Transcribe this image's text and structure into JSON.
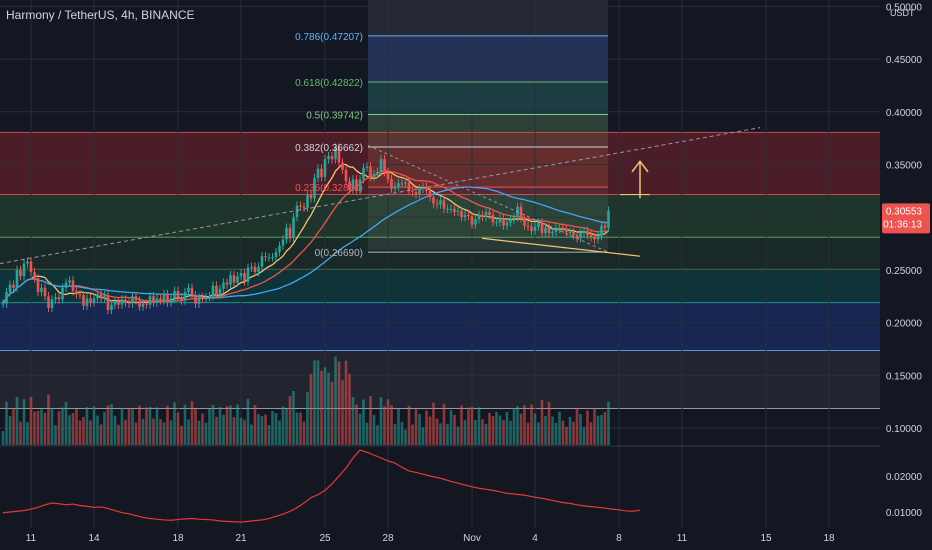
{
  "header": {
    "title": "Harmony / TetherUS, 4h, BINANCE",
    "currency": "USDT"
  },
  "colors": {
    "bg": "#131722",
    "up": "#26a69a",
    "down": "#ef5350",
    "grid": "#2a2e39",
    "text": "#d1d4dc"
  },
  "price_axis": {
    "ticks": [
      "0.50000",
      "0.45000",
      "0.40000",
      "0.35000",
      "0.30000",
      "0.25000",
      "0.20000",
      "0.15000",
      "0.10000"
    ],
    "tick_values": [
      0.5,
      0.45,
      0.4,
      0.35,
      0.3,
      0.25,
      0.2,
      0.15,
      0.1
    ],
    "current_price": "0.30553",
    "countdown": "01:36:13"
  },
  "indicator_axis": {
    "ticks": [
      "0.02000",
      "0.01000"
    ],
    "tick_values": [
      0.02,
      0.01
    ]
  },
  "time_axis": {
    "labels": [
      "11",
      "14",
      "18",
      "21",
      "25",
      "28",
      "Nov",
      "4",
      "8",
      "11",
      "15",
      "18"
    ],
    "label_bars": [
      8,
      26,
      50,
      68,
      92,
      110,
      134,
      152,
      176,
      194,
      218,
      236
    ]
  },
  "fib_levels": [
    {
      "label": "0.786(0.47207)",
      "value": 0.47207,
      "color": "#64b5f6"
    },
    {
      "label": "0.618(0.42822)",
      "value": 0.42822,
      "color": "#66bb6a"
    },
    {
      "label": "0.5(0.39742)",
      "value": 0.39742,
      "color": "#81c784"
    },
    {
      "label": "0.382(0.36662)",
      "value": 0.36662,
      "color": "#d1d4dc"
    },
    {
      "label": "0.236(0.32851)",
      "value": 0.32851,
      "color": "#ef5350"
    },
    {
      "label": "0(0.26690)",
      "value": 0.2669,
      "color": "#b2b5be"
    }
  ],
  "chart_data": [
    {
      "type": "candlestick",
      "title": "Harmony / TetherUS, 4h, BINANCE",
      "x_start_label": "11",
      "ylim": [
        0.095,
        0.52
      ],
      "close": [
        0.218,
        0.229,
        0.236,
        0.233,
        0.25,
        0.244,
        0.256,
        0.258,
        0.248,
        0.242,
        0.229,
        0.233,
        0.225,
        0.214,
        0.222,
        0.224,
        0.222,
        0.233,
        0.238,
        0.24,
        0.23,
        0.227,
        0.226,
        0.216,
        0.223,
        0.219,
        0.223,
        0.227,
        0.223,
        0.226,
        0.212,
        0.217,
        0.22,
        0.217,
        0.222,
        0.219,
        0.218,
        0.225,
        0.221,
        0.215,
        0.218,
        0.217,
        0.225,
        0.219,
        0.223,
        0.221,
        0.227,
        0.219,
        0.223,
        0.23,
        0.224,
        0.221,
        0.229,
        0.233,
        0.226,
        0.218,
        0.224,
        0.223,
        0.224,
        0.225,
        0.235,
        0.227,
        0.232,
        0.238,
        0.236,
        0.245,
        0.238,
        0.244,
        0.247,
        0.239,
        0.252,
        0.253,
        0.248,
        0.253,
        0.263,
        0.262,
        0.262,
        0.262,
        0.267,
        0.273,
        0.279,
        0.29,
        0.28,
        0.3,
        0.311,
        0.31,
        0.309,
        0.321,
        0.318,
        0.337,
        0.346,
        0.338,
        0.355,
        0.358,
        0.355,
        0.366,
        0.352,
        0.345,
        0.334,
        0.326,
        0.336,
        0.325,
        0.336,
        0.347,
        0.348,
        0.338,
        0.341,
        0.343,
        0.355,
        0.343,
        0.336,
        0.327,
        0.329,
        0.332,
        0.332,
        0.333,
        0.325,
        0.324,
        0.322,
        0.327,
        0.329,
        0.325,
        0.319,
        0.313,
        0.312,
        0.316,
        0.308,
        0.308,
        0.308,
        0.305,
        0.306,
        0.3,
        0.302,
        0.301,
        0.293,
        0.298,
        0.302,
        0.3,
        0.305,
        0.302,
        0.295,
        0.295,
        0.299,
        0.292,
        0.295,
        0.298,
        0.3,
        0.31,
        0.299,
        0.292,
        0.291,
        0.287,
        0.291,
        0.295,
        0.285,
        0.29,
        0.285,
        0.286,
        0.289,
        0.29,
        0.289,
        0.286,
        0.286,
        0.283,
        0.28,
        0.285,
        0.287,
        0.283,
        0.281,
        0.279,
        0.282,
        0.292,
        0.29,
        0.306
      ],
      "series": [
        {
          "name": "Volume",
          "type": "histogram"
        }
      ]
    },
    {
      "type": "line",
      "y_values": [
        0.0098,
        0.01,
        0.0102,
        0.0104,
        0.0108,
        0.0113,
        0.012,
        0.0125,
        0.0123,
        0.012,
        0.0122,
        0.0118,
        0.0116,
        0.0113,
        0.0114,
        0.011,
        0.0104,
        0.0098,
        0.0095,
        0.009,
        0.0085,
        0.0082,
        0.008,
        0.0078,
        0.0077,
        0.0079,
        0.0081,
        0.0082,
        0.008,
        0.0079,
        0.0078,
        0.0075,
        0.0074,
        0.0073,
        0.0072,
        0.0074,
        0.0076,
        0.0078,
        0.0082,
        0.0088,
        0.0094,
        0.0102,
        0.0112,
        0.0125,
        0.014,
        0.0148,
        0.016,
        0.0178,
        0.02,
        0.0222,
        0.025,
        0.0272,
        0.0266,
        0.0258,
        0.025,
        0.0242,
        0.0236,
        0.0224,
        0.0214,
        0.021,
        0.0205,
        0.02,
        0.0196,
        0.0191,
        0.0185,
        0.018,
        0.0175,
        0.017,
        0.0166,
        0.0163,
        0.016,
        0.0156,
        0.0152,
        0.015,
        0.0148,
        0.0145,
        0.0141,
        0.0138,
        0.0134,
        0.013,
        0.0126,
        0.0124,
        0.012,
        0.0117,
        0.0115,
        0.0113,
        0.0111,
        0.0108,
        0.0106,
        0.0103,
        0.0102,
        0.0105
      ],
      "ylim": [
        0.005,
        0.031
      ]
    }
  ]
}
